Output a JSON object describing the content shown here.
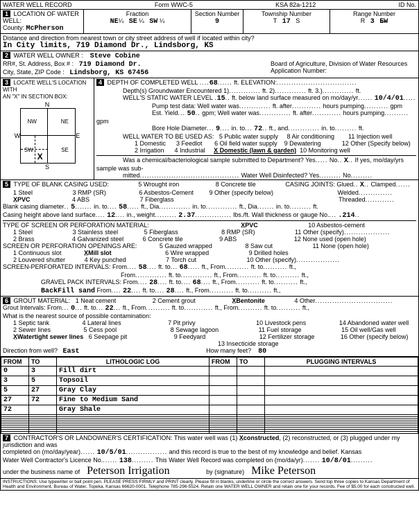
{
  "header": {
    "title": "WATER WELL RECORD",
    "form": "Form WWC-5",
    "ksa": "KSA 82a-1212",
    "id_label": "ID No."
  },
  "location": {
    "section_label": "LOCATION OF WATER WELL:",
    "county_label": "County:",
    "county": "McPherson",
    "fraction_label": "Fraction",
    "f1": "NE",
    "f1q": "¼",
    "f2": "SE",
    "f2q": "¼",
    "f3": "SW",
    "f3q": "¼",
    "section_num_label": "Section Number",
    "section_num": "9",
    "township_label": "Township Number",
    "township_t": "T",
    "township": "17",
    "township_s": "S",
    "range_label": "Range Number",
    "range_r": "R",
    "range": "3",
    "range_ew": "E̶W",
    "direction_label": "Distance and direction from nearest town or city street address of well if located within city?",
    "direction_value": "In City limits, 719 Diamond Dr., Lindsborg, KS"
  },
  "owner": {
    "section_label": "WATER WELL OWNER :",
    "name": "Steve Cobine",
    "addr_label": "RR#, St. Address, Box # :",
    "addr": "719 Diamond Dr.",
    "csz_label": "City, State, ZIP Code :",
    "csz": "Lindsborg, KS  67456",
    "board": "Board of Agriculture, Division of Water Resources",
    "app_label": "Application Number:"
  },
  "locate": {
    "section_label": "LOCATE WELL'S LOCATION WITH",
    "an_x": "AN \"X\" IN SECTION BOX:",
    "n": "N",
    "s": "S",
    "e": "E",
    "w": "W",
    "nw": "NW",
    "ne": "NE",
    "sw": "SW",
    "se": "SE"
  },
  "depth": {
    "section_label": "DEPTH OF COMPLETED WELL",
    "completed": "68",
    "elev_label": "ft. ELEVATION:",
    "depths_label": "Depth(s) Groundwater Encountered",
    "d1": "1)",
    "d2": "ft. 2)",
    "d3": "ft. 3.)",
    "dft": "ft.",
    "static_label": "WELL'S STATIC WATER LEVEL",
    "static": "15",
    "static_after": "ft. below land surface measured on mo/day/yr",
    "static_date": "10/4/01",
    "pump_label": "Pump test data:  Well water was",
    "pump_ft": "ft. after",
    "pump_hrs": "hours pumping",
    "pump_gpm": "gpm",
    "yield_label": "Est. Yield",
    "yield": "50",
    "yield_gpm": "gpm; Well water was",
    "bore_label": "Bore Hole Diameter",
    "bore1": "9",
    "bore_in": "in. to",
    "bore2": "72",
    "bore_ft": "ft., and",
    "bore_in2": "in. to",
    "bore_ft2": "ft.",
    "use_label": "WELL WATER TO BE USED AS:",
    "use1": "1 Domestic",
    "use2": "2 Irrigation",
    "use3": "3 Feedlot",
    "use4": "4 Industrial",
    "use5": "5 Public water supply",
    "use6": "6 Oil field water supply",
    "use7": "X̲ Domestic (lawn & garden)",
    "use8": "8 Air conditioning",
    "use9": "9 Dewatering",
    "use10": "10 Monitoring well",
    "use11": "11 Injection well",
    "use12": "12 Other (Specify below)",
    "bact_label": "Was a chemical/bacteriological sample submitted to Department? Yes",
    "bact_no": "No",
    "bact_x": "X",
    "bact_if": "If yes, mo/day/yrs sample was sub-",
    "bact2": "mitted",
    "disinfect": "Water Well Disinfected? Yes",
    "disinfect_no": "No"
  },
  "casing": {
    "section_label": "TYPE OF BLANK CASING USED:",
    "c1": "1 Steel",
    "c2": "X̲PVC",
    "c3": "3 RMP (SR)",
    "c4": "4 ABS",
    "c5": "5 Wrought iron",
    "c6": "6 Asbestos-Cement",
    "c7": "7 Fiberglass",
    "c8": "8 Concrete tile",
    "c9": "9 Other (specify below)",
    "joints_label": "CASING JOINTS: Glued",
    "joints_x": "X",
    "joints_c": "Clamped",
    "joints_w": "Welded",
    "joints_t": "Threaded",
    "blank_dia_label": "Blank casing diameter",
    "blank_dia": "5",
    "blank_into": "in. to",
    "blank_d2": "58",
    "blank_ft": "ft., Dia",
    "blank_in": "in. to",
    "blank_ft2": "ft., Dia",
    "blank_in2": "in. to",
    "blank_ft3": "ft.",
    "height_label": "Casing height above land surface",
    "height": "12",
    "height_in": "in., weight",
    "weight": "2.37",
    "weight_lbs": "lbs./ft. Wall thickness or gauge No.",
    "gauge": ".214"
  },
  "screen": {
    "label": "TYPE OF SCREEN OR PERFORATION MATERIAL:",
    "s1": "1 Steel",
    "s2": "2 Brass",
    "s3": "3 Stainless steel",
    "s4": "4 Galvanized steel",
    "s5": "5 Fiberglass",
    "s6": "6 Concrete tile",
    "s7": "X̲PVC",
    "s8": "8 RMP (SR)",
    "s9": "9 ABS",
    "s10": "10 Asbestos-cement",
    "s11": "11 Other (specify)",
    "s12": "12 None used (open hole)",
    "open_label": "SCREEN OR PERFORATION OPENINGS ARE:",
    "o1": "1 Continuous slot",
    "o2": "2 Louvered shutter",
    "o3": "X̲Mill slot",
    "o4": "4 Key punched",
    "o5": "5 Gauzed wrapped",
    "o6": "6 Wire wrapped",
    "o7": "7 Torch cut",
    "o8": "8 Saw cut",
    "o9": "9 Drilled holes",
    "o10": "10 Other (specify)",
    "o11": "11 None (open hole)",
    "perf_label": "SCREEN-PERFORATED INTERVALS:  From",
    "pf1": "58",
    "pt1": "68",
    "from": "From",
    "to": "ft. to",
    "ft": "ft.,",
    "gravel_label": "GRAVEL PACK INTERVALS:  From",
    "gf1": "28",
    "gt1": "68",
    "backfill": "BackFill sand",
    "bf1": "22",
    "bt1": "28"
  },
  "grout": {
    "section_label": "GROUT MATERIAL:",
    "g1": "1 Neat cement",
    "g2": "2 Cement grout",
    "g3": "X̲Bentonite",
    "g4": "4 Other",
    "intervals_label": "Grout Intervals:  From",
    "gi_f": "0",
    "gi_t": "22",
    "contam_label": "What is the nearest source of possible contamination:",
    "c1": "1 Septic tank",
    "c2": "2 Sewer lines",
    "c3": "X̲Watertight sewer lines",
    "c4": "4 Lateral lines",
    "c5": "5 Cess pool",
    "c6": "6 Seepage pit",
    "c7": "7 Pit privy",
    "c8": "8 Sewage lagoon",
    "c9": "9 Feedyard",
    "c10": "10 Livestock pens",
    "c11": "11 Fuel storage",
    "c12": "12 Fertilizer storage",
    "c13": "13 Insecticide storage",
    "c14": "14 Abandoned water well",
    "c15": "15 Oil well/Gas well",
    "c16": "16 Other (specify below)",
    "dir_label": "Direction from well?",
    "dir": "East",
    "feet_label": "How many feet?",
    "feet": "80"
  },
  "log": {
    "h1": "FROM",
    "h2": "TO",
    "h3": "LITHOLOGIC LOG",
    "h4": "FROM",
    "h5": "TO",
    "h6": "PLUGGING INTERVALS",
    "rows": [
      {
        "from": "0",
        "to": "3",
        "desc": "Fill dirt"
      },
      {
        "from": "3",
        "to": "5",
        "desc": "Topsoil"
      },
      {
        "from": "5",
        "to": "27",
        "desc": "Gray Clay"
      },
      {
        "from": "27",
        "to": "72",
        "desc": "Fine to Medium Sand"
      },
      {
        "from": "72",
        "to": "",
        "desc": "Gray Shale"
      }
    ]
  },
  "cert": {
    "section_label": "CONTRACTOR'S OR LANDOWNER'S CERTIFICATION: This water well was (1)",
    "constructed": "X̲constructed",
    "cert2": "(2) reconstructed, or (3) plugged under my jurisdiction and was",
    "completed_label": "completed on (mo/day/year)",
    "completed": "10/5/01",
    "cert3": "and this record is true to the best of my knowledge and belief. Kansas",
    "lic_label": "Water Well Contractor's Licence No.",
    "lic": "138",
    "cert4": "This Water Well Record was completed on (mo/da/yr)",
    "rec_date": "10/8/01",
    "bus_label": "under the business name of",
    "bus": "Peterson Irrigation",
    "sig_label": "by (signature)",
    "sig": "Mike Peterson"
  },
  "footer": "INSTRUCTIONS: Use typewriter or ball point pen. PLEASE PRESS FIRMLY and PRINT clearly. Please fill in blanks, underline or circle the correct answers. Send top three copies to Kansas Department of Health and Environment, Bureau of Water, Topeka, Kansas 66620-0001. Telephone 785-296-5524. Retain one WATER WELL OWNER and retain one for your records. Fee of $5.00 for each constructed well."
}
